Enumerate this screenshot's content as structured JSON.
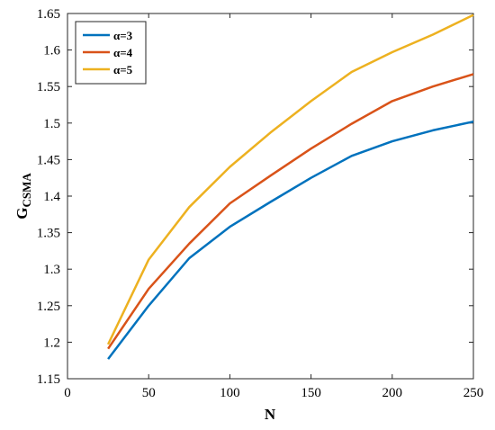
{
  "chart_data": {
    "type": "line",
    "xlabel": "N",
    "ylabel": "G",
    "ylabel_subscript": "CSMA",
    "xlim": [
      0,
      250
    ],
    "ylim": [
      1.15,
      1.65
    ],
    "xticks": [
      0,
      50,
      100,
      150,
      200,
      250
    ],
    "yticks": [
      1.15,
      1.2,
      1.25,
      1.3,
      1.35,
      1.4,
      1.45,
      1.5,
      1.55,
      1.6,
      1.65
    ],
    "grid": false,
    "legend_position": "top-left",
    "x": [
      25,
      50,
      75,
      100,
      125,
      150,
      175,
      200,
      225,
      250
    ],
    "series": [
      {
        "name": "α=3",
        "color": "#0072BD",
        "values": [
          1.177,
          1.25,
          1.315,
          1.358,
          1.392,
          1.425,
          1.455,
          1.475,
          1.49,
          1.502
        ]
      },
      {
        "name": "α=4",
        "color": "#D95319",
        "values": [
          1.191,
          1.273,
          1.335,
          1.39,
          1.428,
          1.465,
          1.499,
          1.53,
          1.55,
          1.567
        ]
      },
      {
        "name": "α=5",
        "color": "#EDB120",
        "values": [
          1.197,
          1.313,
          1.385,
          1.44,
          1.487,
          1.53,
          1.57,
          1.597,
          1.621,
          1.648
        ]
      }
    ]
  }
}
